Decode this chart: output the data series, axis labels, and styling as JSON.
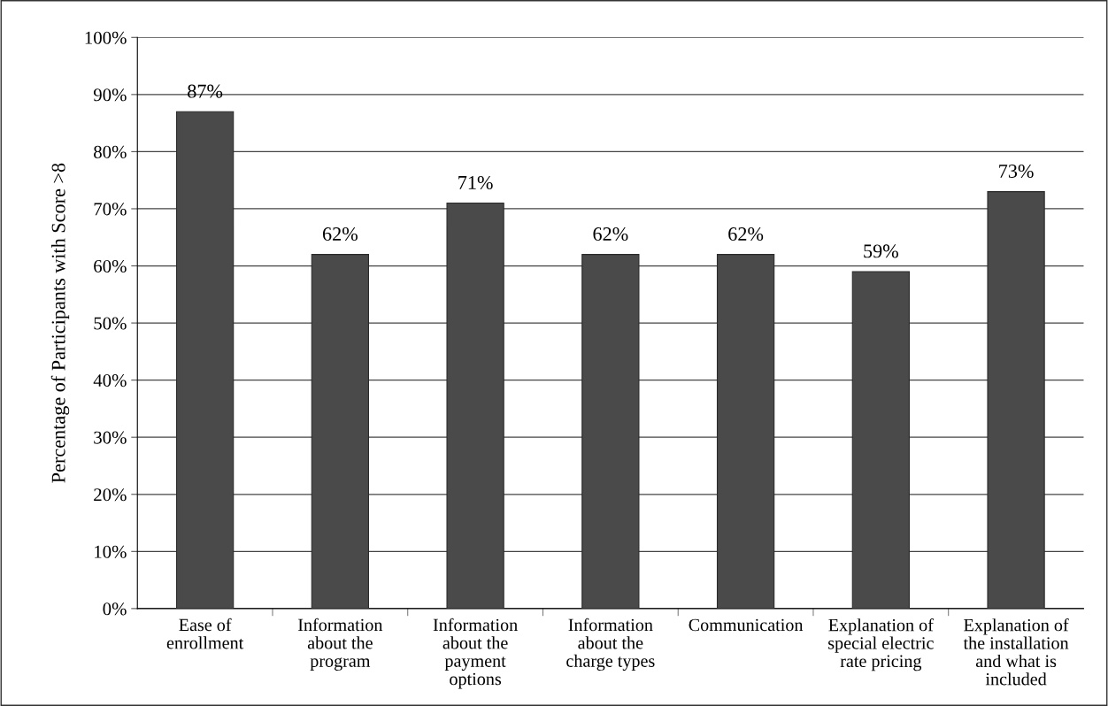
{
  "chart_data": {
    "type": "bar",
    "ylabel": "Percentage of Participants with Score >8",
    "categories": [
      "Ease of\nenrollment",
      "Information\nabout the\nprogram",
      "Information\nabout the\npayment\noptions",
      "Information\nabout the\ncharge types",
      "Communication",
      "Explanation of\nspecial electric\nrate pricing",
      "Explanation of\nthe installation\nand what is\nincluded"
    ],
    "values": [
      87,
      62,
      71,
      62,
      62,
      59,
      73
    ],
    "value_labels": [
      "87%",
      "62%",
      "71%",
      "62%",
      "62%",
      "59%",
      "73%"
    ],
    "color": "#4a4a4a",
    "ylim": [
      0,
      100
    ],
    "yticks": [
      {
        "value": 0,
        "label": "0%"
      },
      {
        "value": 10,
        "label": "10%"
      },
      {
        "value": 20,
        "label": "20%"
      },
      {
        "value": 30,
        "label": "30%"
      },
      {
        "value": 40,
        "label": "40%"
      },
      {
        "value": 50,
        "label": "50%"
      },
      {
        "value": 60,
        "label": "60%"
      },
      {
        "value": 70,
        "label": "70%"
      },
      {
        "value": 80,
        "label": "80%"
      },
      {
        "value": 90,
        "label": "90%"
      },
      {
        "value": 100,
        "label": "100%"
      }
    ],
    "grid": "y"
  }
}
